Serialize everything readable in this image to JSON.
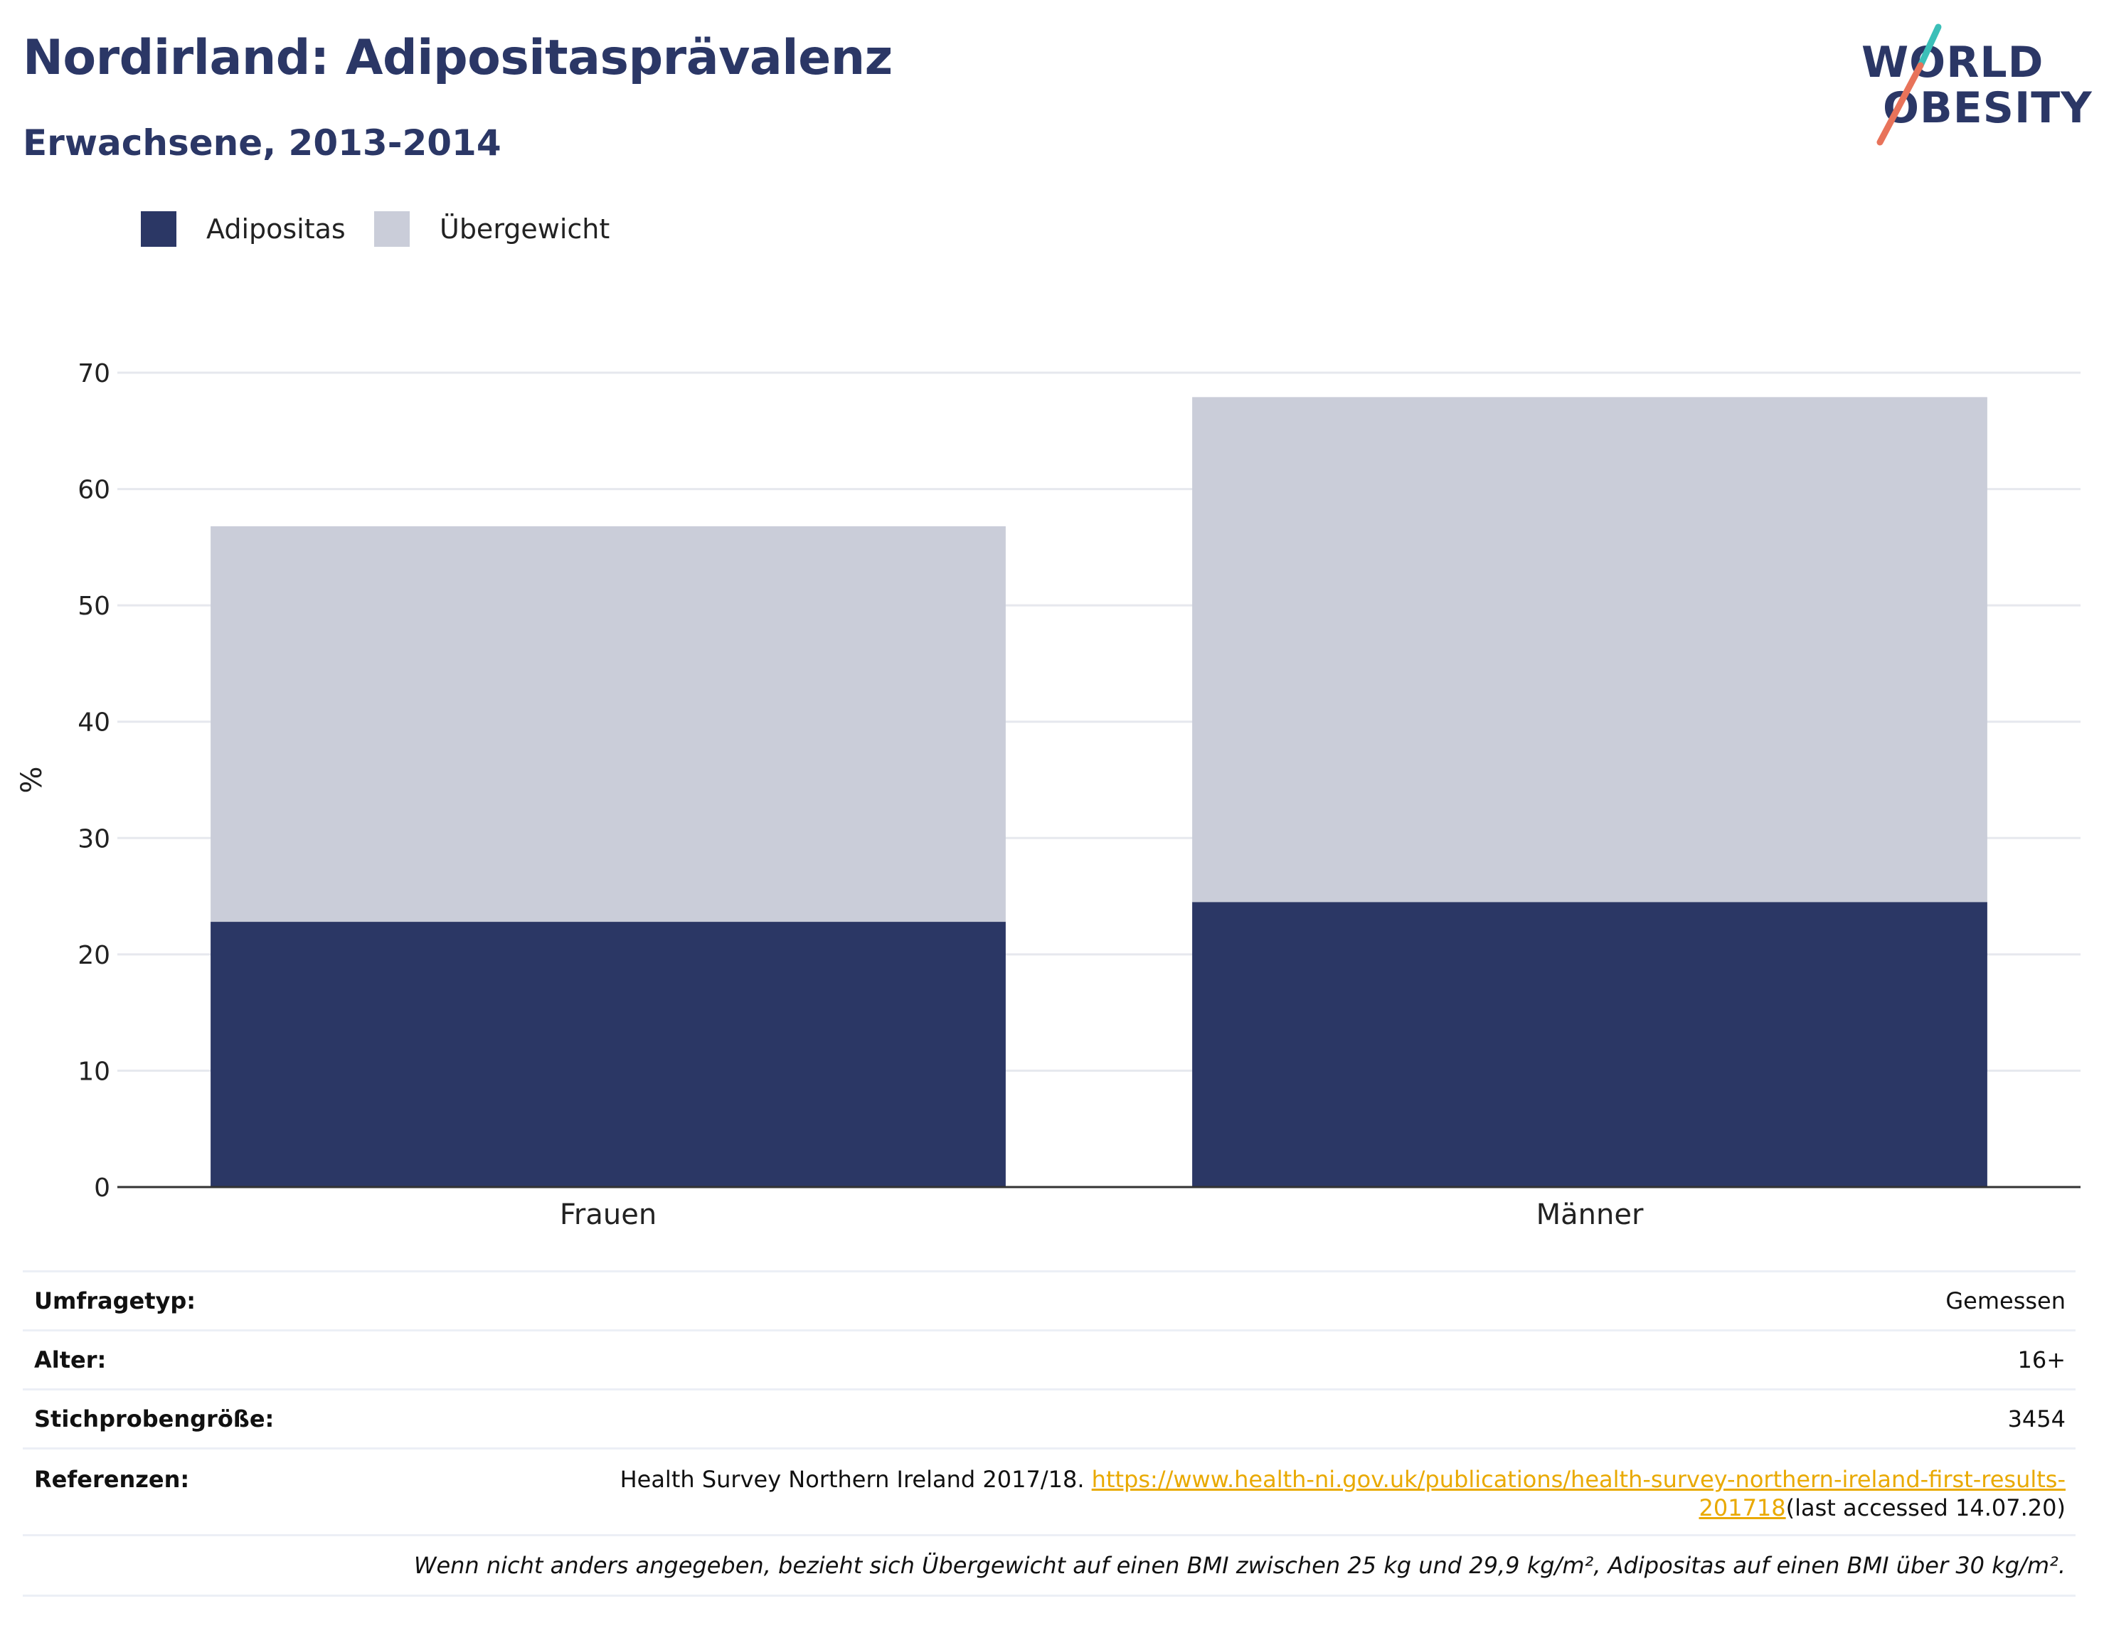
{
  "header": {
    "title": "Nordirland: Adipositasprävalenz",
    "subtitle": "Erwachsene, 2013-2014"
  },
  "logo": {
    "line1": "WORLD",
    "line2": "OBESITY",
    "accent_teal": "#3bbfb8",
    "accent_coral": "#e8735a"
  },
  "legend": [
    {
      "label": "Adipositas",
      "color": "#2b3765"
    },
    {
      "label": "Übergewicht",
      "color": "#cacdd9"
    }
  ],
  "chart_data": {
    "type": "bar",
    "stacked": true,
    "categories": [
      "Frauen",
      "Männer"
    ],
    "series": [
      {
        "name": "Adipositas",
        "color": "#2b3765",
        "values": [
          22.8,
          24.5
        ]
      },
      {
        "name": "Übergewicht",
        "color": "#cacdd9",
        "values": [
          34.0,
          43.4
        ]
      }
    ],
    "xlabel": "",
    "ylabel": "%",
    "ylim": [
      0,
      70
    ],
    "yticks": [
      0,
      10,
      20,
      30,
      40,
      50,
      60,
      70
    ],
    "grid": true,
    "legend_position": "top-left"
  },
  "info": {
    "rows": [
      {
        "key": "Umfragetyp:",
        "value": "Gemessen"
      },
      {
        "key": "Alter:",
        "value": "16+"
      },
      {
        "key": "Stichprobengröße:",
        "value": "3454"
      }
    ],
    "reference": {
      "key": "Referenzen:",
      "text": "Health Survey Northern Ireland 2017/18. ",
      "link_part1": "https://www.health-ni.gov.uk/publications/health-survey-northern-ireland-first-results-",
      "link_part2": "201718",
      "suffix": "(last accessed 14.07.20)"
    },
    "note": "Wenn nicht anders angegeben, bezieht sich Übergewicht auf einen BMI zwischen 25 kg und 29,9 kg/m², Adipositas auf einen BMI über 30 kg/m²."
  }
}
